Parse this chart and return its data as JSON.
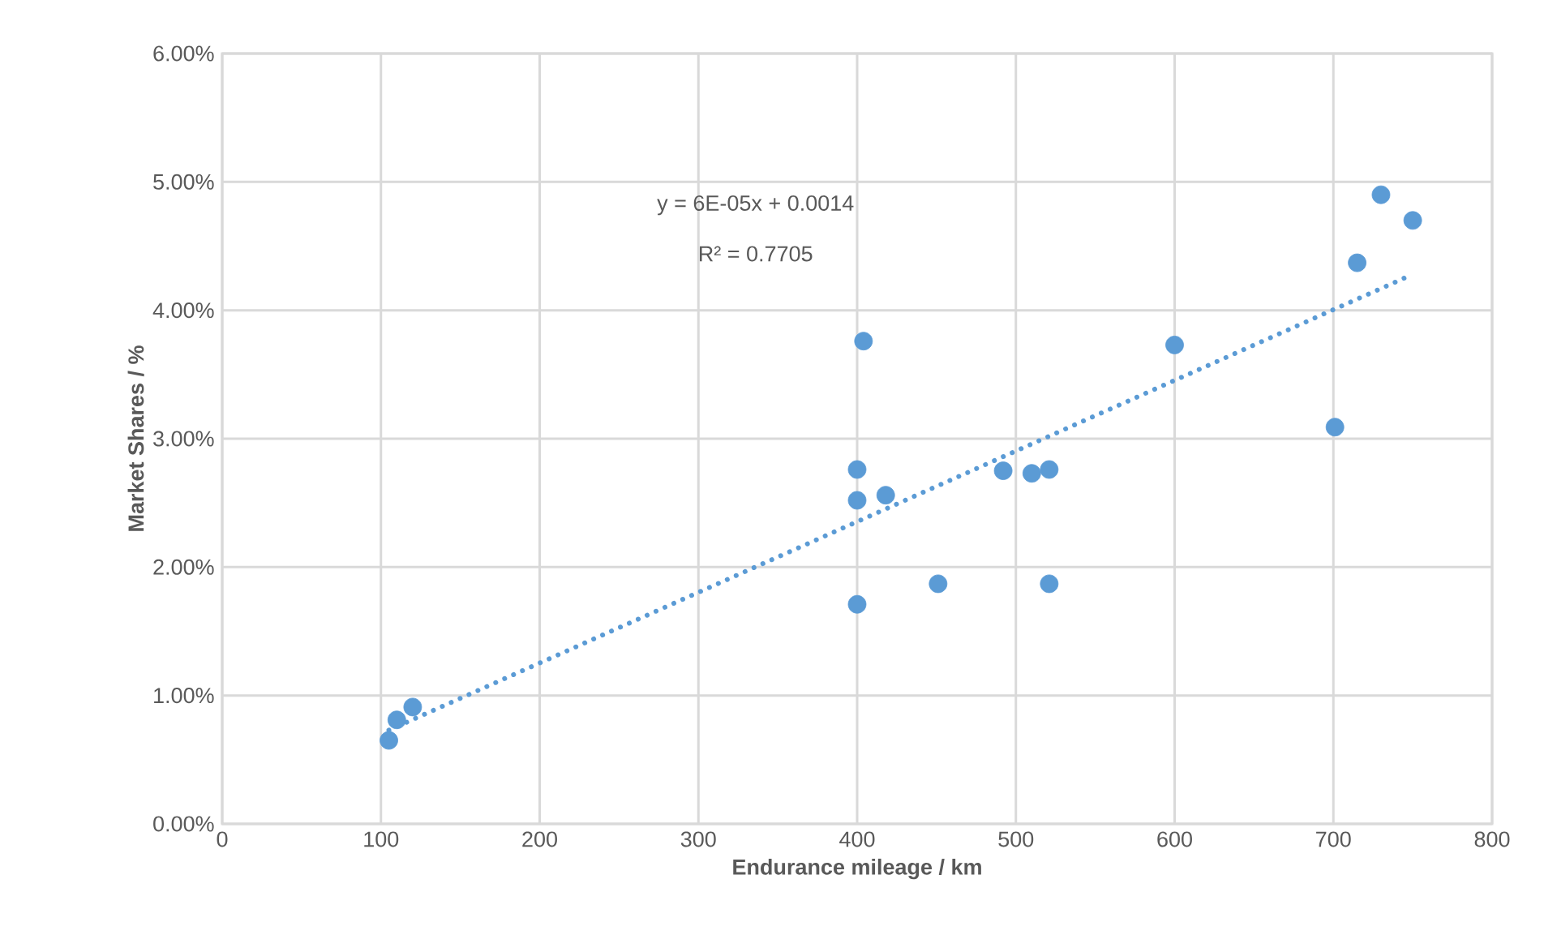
{
  "chart_data": {
    "type": "scatter",
    "xlabel": "Endurance mileage / km",
    "ylabel": "Market Shares / %",
    "xlim": [
      0,
      800
    ],
    "xticks": [
      0,
      100,
      200,
      300,
      400,
      500,
      600,
      700,
      800
    ],
    "ylim": [
      0,
      6
    ],
    "yticks": [
      {
        "value": 0,
        "label": "0.00%"
      },
      {
        "value": 1,
        "label": "1.00%"
      },
      {
        "value": 2,
        "label": "2.00%"
      },
      {
        "value": 3,
        "label": "3.00%"
      },
      {
        "value": 4,
        "label": "4.00%"
      },
      {
        "value": 5,
        "label": "5.00%"
      },
      {
        "value": 6,
        "label": "6.00%"
      }
    ],
    "grid": true,
    "annotations": [
      "y = 6E-05x + 0.0014",
      "R² = 0.7705"
    ],
    "series": [
      {
        "color": "#5b9bd5",
        "marker": "circle",
        "x": [
          105,
          110,
          120,
          404,
          400,
          400,
          418,
          451,
          400,
          492,
          510,
          521,
          521,
          600,
          701,
          715,
          730,
          750
        ],
        "values": [
          0.65,
          0.81,
          0.91,
          3.76,
          2.76,
          2.52,
          2.56,
          1.87,
          1.71,
          2.75,
          2.73,
          2.76,
          1.87,
          3.73,
          3.09,
          4.37,
          4.9,
          4.7
        ]
      },
      {
        "type": "line",
        "color": "#5b9bd5",
        "line_style": "dotted",
        "marker": "none",
        "x": [
          105,
          750
        ],
        "values": [
          0.73,
          4.28
        ]
      }
    ]
  }
}
